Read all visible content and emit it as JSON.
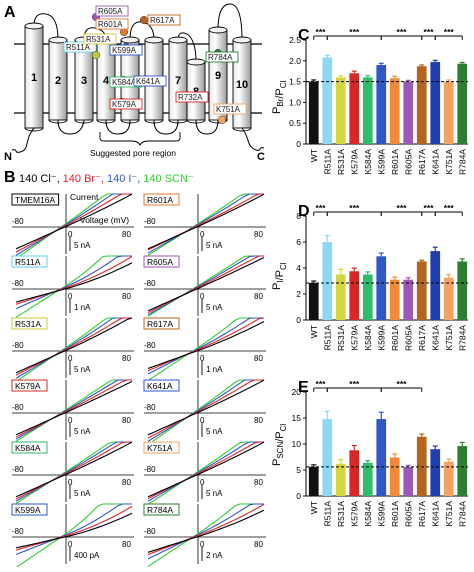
{
  "panels": {
    "A": "A",
    "B": "B",
    "C": "C",
    "D": "D",
    "E": "E"
  },
  "colors": {
    "cl": "#000000",
    "br": "#e8202a",
    "i": "#2f57c8",
    "scn": "#2fcf34"
  },
  "panelA": {
    "helix_numbers": [
      "1",
      "2",
      "3",
      "4",
      "5",
      "6",
      "7",
      "8",
      "9",
      "10"
    ],
    "pore_label": "Suggested pore region",
    "n_term": "N",
    "c_term": "C",
    "mutants": [
      {
        "label": "R605A",
        "color": "#9b59b6"
      },
      {
        "label": "R617A",
        "color": "#b5651d"
      },
      {
        "label": "R601A",
        "color": "#e07a2f"
      },
      {
        "label": "R511A",
        "color": "#5fd3f3"
      },
      {
        "label": "R531A",
        "color": "#c8c83a"
      },
      {
        "label": "K599A",
        "color": "#2f57c8"
      },
      {
        "label": "R784A",
        "color": "#2e7d32"
      },
      {
        "label": "K584A",
        "color": "#2ebd6b"
      },
      {
        "label": "K641A",
        "color": "#2f57c8"
      },
      {
        "label": "K579A",
        "color": "#d62828"
      },
      {
        "label": "R732A",
        "color": "#d62828"
      },
      {
        "label": "K751A",
        "color": "#f4a460"
      }
    ]
  },
  "panelB": {
    "legend": [
      "140 Cl⁻,",
      "140 Br⁻,",
      "140 I⁻,",
      "140 SCN⁻"
    ],
    "current_label": "Current",
    "voltage_label": "Voltage (mV)",
    "traces": [
      {
        "name": "TMEM16A",
        "tag_color": "#000000",
        "scale": "5 nA",
        "neg": "-80",
        "zero": "0",
        "pos": "80"
      },
      {
        "name": "R601A",
        "tag_color": "#e07a2f",
        "scale": "5 nA",
        "neg": "-80",
        "zero": "0",
        "pos": "80"
      },
      {
        "name": "R511A",
        "tag_color": "#5fd3f3",
        "scale": "1 nA",
        "neg": "-80",
        "zero": "0",
        "pos": "80"
      },
      {
        "name": "R605A",
        "tag_color": "#9b59b6",
        "scale": "5 nA",
        "neg": "-80",
        "zero": "0",
        "pos": "80"
      },
      {
        "name": "R531A",
        "tag_color": "#c8c83a",
        "scale": "5 nA",
        "neg": "-80",
        "zero": "0",
        "pos": "80"
      },
      {
        "name": "R617A",
        "tag_color": "#b5651d",
        "scale": "1 nA",
        "neg": "-80",
        "zero": "0",
        "pos": "80"
      },
      {
        "name": "K579A",
        "tag_color": "#d62828",
        "scale": "5 nA",
        "neg": "-80",
        "zero": "0",
        "pos": "80"
      },
      {
        "name": "K641A",
        "tag_color": "#2f57c8",
        "scale": "5 nA",
        "neg": "-80",
        "zero": "0",
        "pos": "80"
      },
      {
        "name": "K584A",
        "tag_color": "#2ebd6b",
        "scale": "5 nA",
        "neg": "-80",
        "zero": "0",
        "pos": "80"
      },
      {
        "name": "K751A",
        "tag_color": "#f4a460",
        "scale": "5 nA",
        "neg": "-80",
        "zero": "0",
        "pos": "80"
      },
      {
        "name": "K599A",
        "tag_color": "#2f57c8",
        "scale": "400 pA",
        "neg": "-80",
        "zero": "0",
        "pos": "80"
      },
      {
        "name": "R784A",
        "tag_color": "#2e7d32",
        "scale": "2 nA",
        "neg": "-80",
        "zero": "0",
        "pos": "80"
      }
    ]
  },
  "chart_data": [
    {
      "panel": "C",
      "type": "bar",
      "ylabel": "P_Br/P_Cl",
      "categories": [
        "WT",
        "R511A",
        "R531A",
        "K579A",
        "K584A",
        "K599A",
        "R601A",
        "R605A",
        "R617A",
        "K641A",
        "K751A",
        "R784A"
      ],
      "values": [
        1.5,
        2.08,
        1.6,
        1.7,
        1.6,
        1.9,
        1.58,
        1.5,
        1.87,
        1.97,
        1.5,
        1.93
      ],
      "errors": [
        0.04,
        0.05,
        0.04,
        0.05,
        0.04,
        0.04,
        0.05,
        0.03,
        0.03,
        0.04,
        0.04,
        0.03
      ],
      "ylim": [
        0,
        2.5
      ],
      "yticks": [
        "0",
        "0.5",
        "1.0",
        "1.5",
        "2.0",
        "2.5"
      ],
      "reference": 1.5,
      "significance": [
        {
          "x1": 0,
          "x2": 1,
          "label": "***"
        },
        {
          "x1": 1,
          "x2": 5,
          "label": "***"
        },
        {
          "x1": 5,
          "x2": 8,
          "label": "***"
        },
        {
          "x1": 8,
          "x2": 9,
          "label": "***"
        },
        {
          "x1": 9,
          "x2": 11,
          "label": "***"
        }
      ]
    },
    {
      "panel": "D",
      "type": "bar",
      "ylabel": "P_I/P_Cl",
      "categories": [
        "WT",
        "R511A",
        "R531A",
        "K579A",
        "K584A",
        "K599A",
        "R601A",
        "R605A",
        "R617A",
        "K641A",
        "K751A",
        "R784A"
      ],
      "values": [
        2.85,
        6.0,
        3.5,
        3.75,
        3.5,
        4.9,
        3.1,
        3.1,
        4.5,
        5.3,
        3.25,
        4.5
      ],
      "errors": [
        0.15,
        0.5,
        0.4,
        0.25,
        0.2,
        0.25,
        0.2,
        0.15,
        0.1,
        0.3,
        0.25,
        0.2
      ],
      "ylim": [
        0,
        8
      ],
      "yticks": [
        "0",
        "2",
        "4",
        "6",
        "8"
      ],
      "reference": 2.85,
      "significance": [
        {
          "x1": 0,
          "x2": 1,
          "label": "***"
        },
        {
          "x1": 1,
          "x2": 5,
          "label": "***"
        },
        {
          "x1": 5,
          "x2": 8,
          "label": "***"
        },
        {
          "x1": 8,
          "x2": 9,
          "label": "***"
        },
        {
          "x1": 9,
          "x2": 11,
          "label": "***"
        }
      ]
    },
    {
      "panel": "E",
      "type": "bar",
      "ylabel": "P_SCN/P_Cl",
      "categories": [
        "WT",
        "R511A",
        "R531A",
        "K579A",
        "K584A",
        "K599A",
        "R601A",
        "R605A",
        "R617A",
        "K641A",
        "K751A",
        "R784A"
      ],
      "values": [
        5.6,
        14.8,
        6.2,
        8.8,
        6.4,
        14.8,
        7.4,
        5.6,
        11.4,
        9.0,
        6.6,
        9.6
      ],
      "errors": [
        0.4,
        1.5,
        0.8,
        0.9,
        0.4,
        1.3,
        0.7,
        0.3,
        0.5,
        0.6,
        0.5,
        0.7
      ],
      "ylim": [
        0,
        20
      ],
      "yticks": [
        "0",
        "5",
        "10",
        "15",
        "20"
      ],
      "reference": 5.6,
      "significance": [
        {
          "x1": 0,
          "x2": 1,
          "label": "***"
        },
        {
          "x1": 1,
          "x2": 5,
          "label": "***"
        },
        {
          "x1": 5,
          "x2": 8,
          "label": "***"
        }
      ]
    }
  ]
}
